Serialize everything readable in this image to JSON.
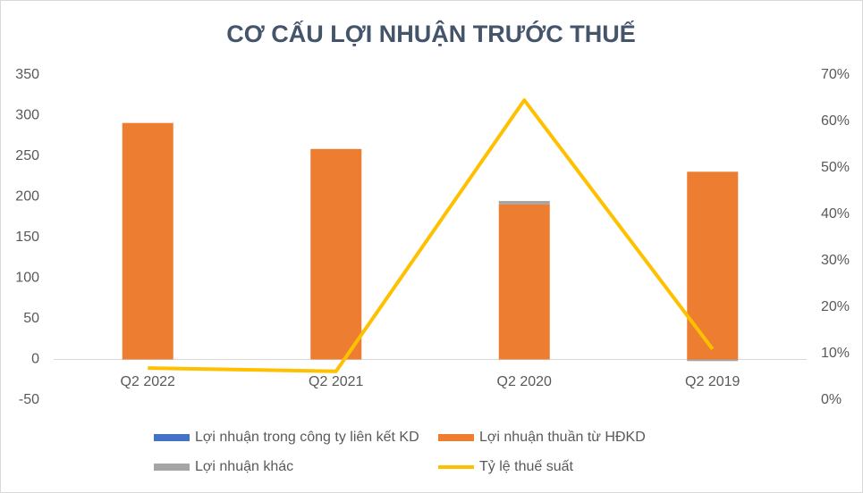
{
  "chart_data": {
    "type": "bar",
    "title": "CƠ CẤU LỢI NHUẬN TRƯỚC THUẾ",
    "categories": [
      "Q2 2022",
      "Q2 2021",
      "Q2 2020",
      "Q2 2019"
    ],
    "stacked": true,
    "ylim": [
      -50,
      350
    ],
    "yticks": [
      -50,
      0,
      50,
      100,
      150,
      200,
      250,
      300,
      350
    ],
    "y2lim": [
      0,
      70
    ],
    "y2ticks": [
      {
        "value": 0,
        "label": "0%"
      },
      {
        "value": 10,
        "label": "10%"
      },
      {
        "value": 20,
        "label": "20%"
      },
      {
        "value": 30,
        "label": "30%"
      },
      {
        "value": 40,
        "label": "40%"
      },
      {
        "value": 50,
        "label": "50%"
      },
      {
        "value": 60,
        "label": "60%"
      },
      {
        "value": 70,
        "label": "70%"
      }
    ],
    "series": [
      {
        "name": "Lợi nhuận trong công ty liên kết KD",
        "color": "#4472c4",
        "type": "bar",
        "values": [
          0,
          0,
          0,
          0
        ]
      },
      {
        "name": "Lợi nhuận thuần từ HĐKD",
        "color": "#ed7d31",
        "type": "bar",
        "values": [
          291,
          259,
          191,
          231
        ]
      },
      {
        "name": "Lợi nhuận khác",
        "color": "#a5a5a5",
        "type": "bar",
        "values": [
          0,
          0,
          4,
          -2
        ]
      },
      {
        "name": "Tỷ lệ thuế suất",
        "color": "#ffc000",
        "type": "line",
        "axis": "y2",
        "values": [
          6.9,
          6.2,
          64.6,
          11
        ]
      }
    ]
  }
}
